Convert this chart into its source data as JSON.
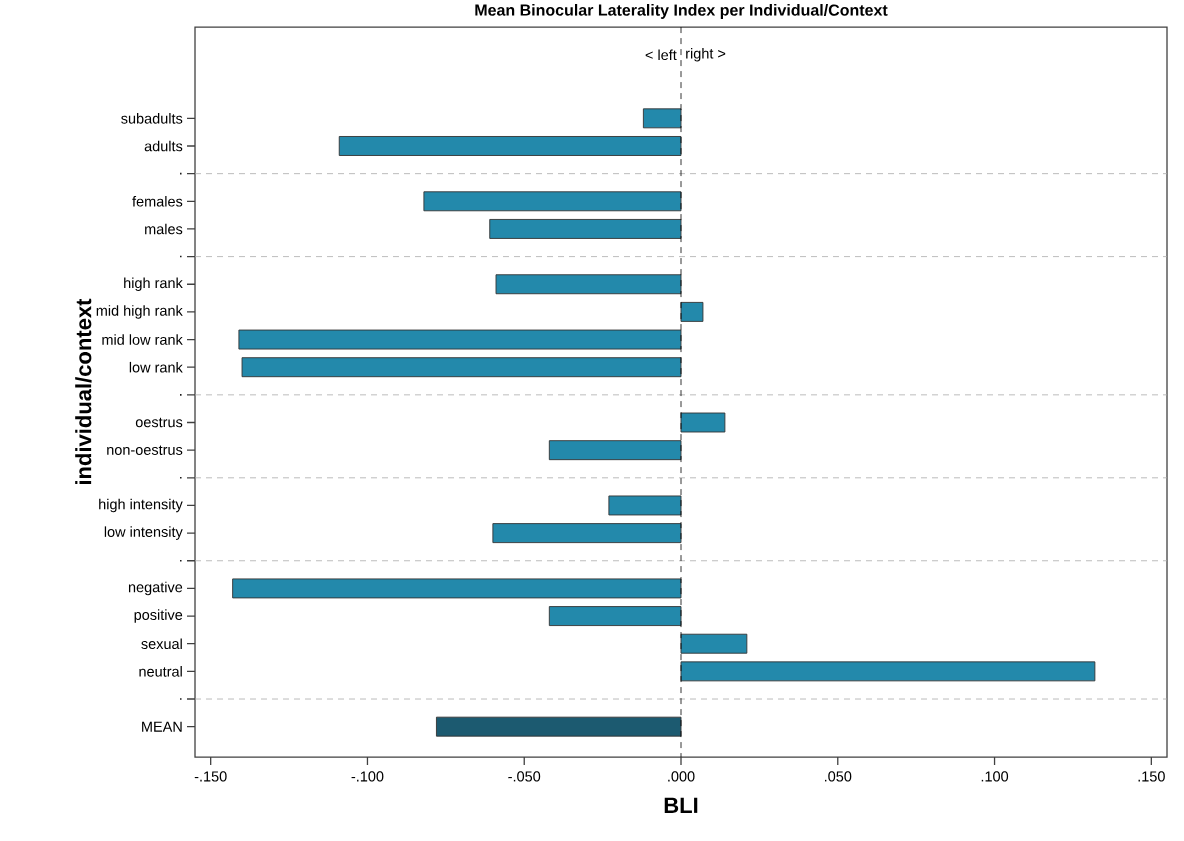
{
  "chart_data": {
    "type": "bar",
    "orientation": "horizontal",
    "title": "Mean Binocular Laterality Index per Individual/Context",
    "xlabel": "BLI",
    "ylabel": "individual/context",
    "categories": [
      "subadults",
      "adults",
      ".",
      "females",
      "males",
      ".",
      "high rank",
      "mid high rank",
      "mid low rank",
      "low rank",
      ".",
      "oestrus",
      "non-oestrus",
      ".",
      "high intensity",
      "low intensity",
      ".",
      "negative",
      "positive",
      "sexual",
      "neutral",
      ".",
      "MEAN"
    ],
    "values": [
      -0.012,
      -0.109,
      null,
      -0.082,
      -0.061,
      null,
      -0.059,
      0.007,
      -0.141,
      -0.14,
      null,
      0.014,
      -0.042,
      null,
      -0.023,
      -0.06,
      null,
      -0.143,
      -0.042,
      0.021,
      0.132,
      null,
      -0.078
    ],
    "colors": [
      "#2389ab",
      "#2389ab",
      "#2389ab",
      "#2389ab",
      "#2389ab",
      "#2389ab",
      "#2389ab",
      "#2389ab",
      "#2389ab",
      "#2389ab",
      "#2389ab",
      "#2389ab",
      "#2389ab",
      "#2389ab",
      "#2389ab",
      "#2389ab",
      "#2389ab",
      "#2389ab",
      "#2389ab",
      "#2389ab",
      "#2389ab",
      "#2389ab",
      "#1c5a70"
    ],
    "xlim": [
      -0.155,
      0.155
    ],
    "xticks": [
      {
        "value": -0.15,
        "label": "-.150"
      },
      {
        "value": -0.1,
        "label": "-.100"
      },
      {
        "value": -0.05,
        "label": "-.050"
      },
      {
        "value": 0,
        "label": ".000"
      },
      {
        "value": 0.05,
        "label": ".050"
      },
      {
        "value": 0.1,
        "label": ".100"
      },
      {
        "value": 0.15,
        "label": ".150"
      }
    ],
    "ref_lines": [
      {
        "axis": "x",
        "value": 0,
        "line_style": "dashed",
        "color": "#000000"
      }
    ],
    "grid": "y",
    "annotations": [
      "< left",
      "right >"
    ]
  }
}
